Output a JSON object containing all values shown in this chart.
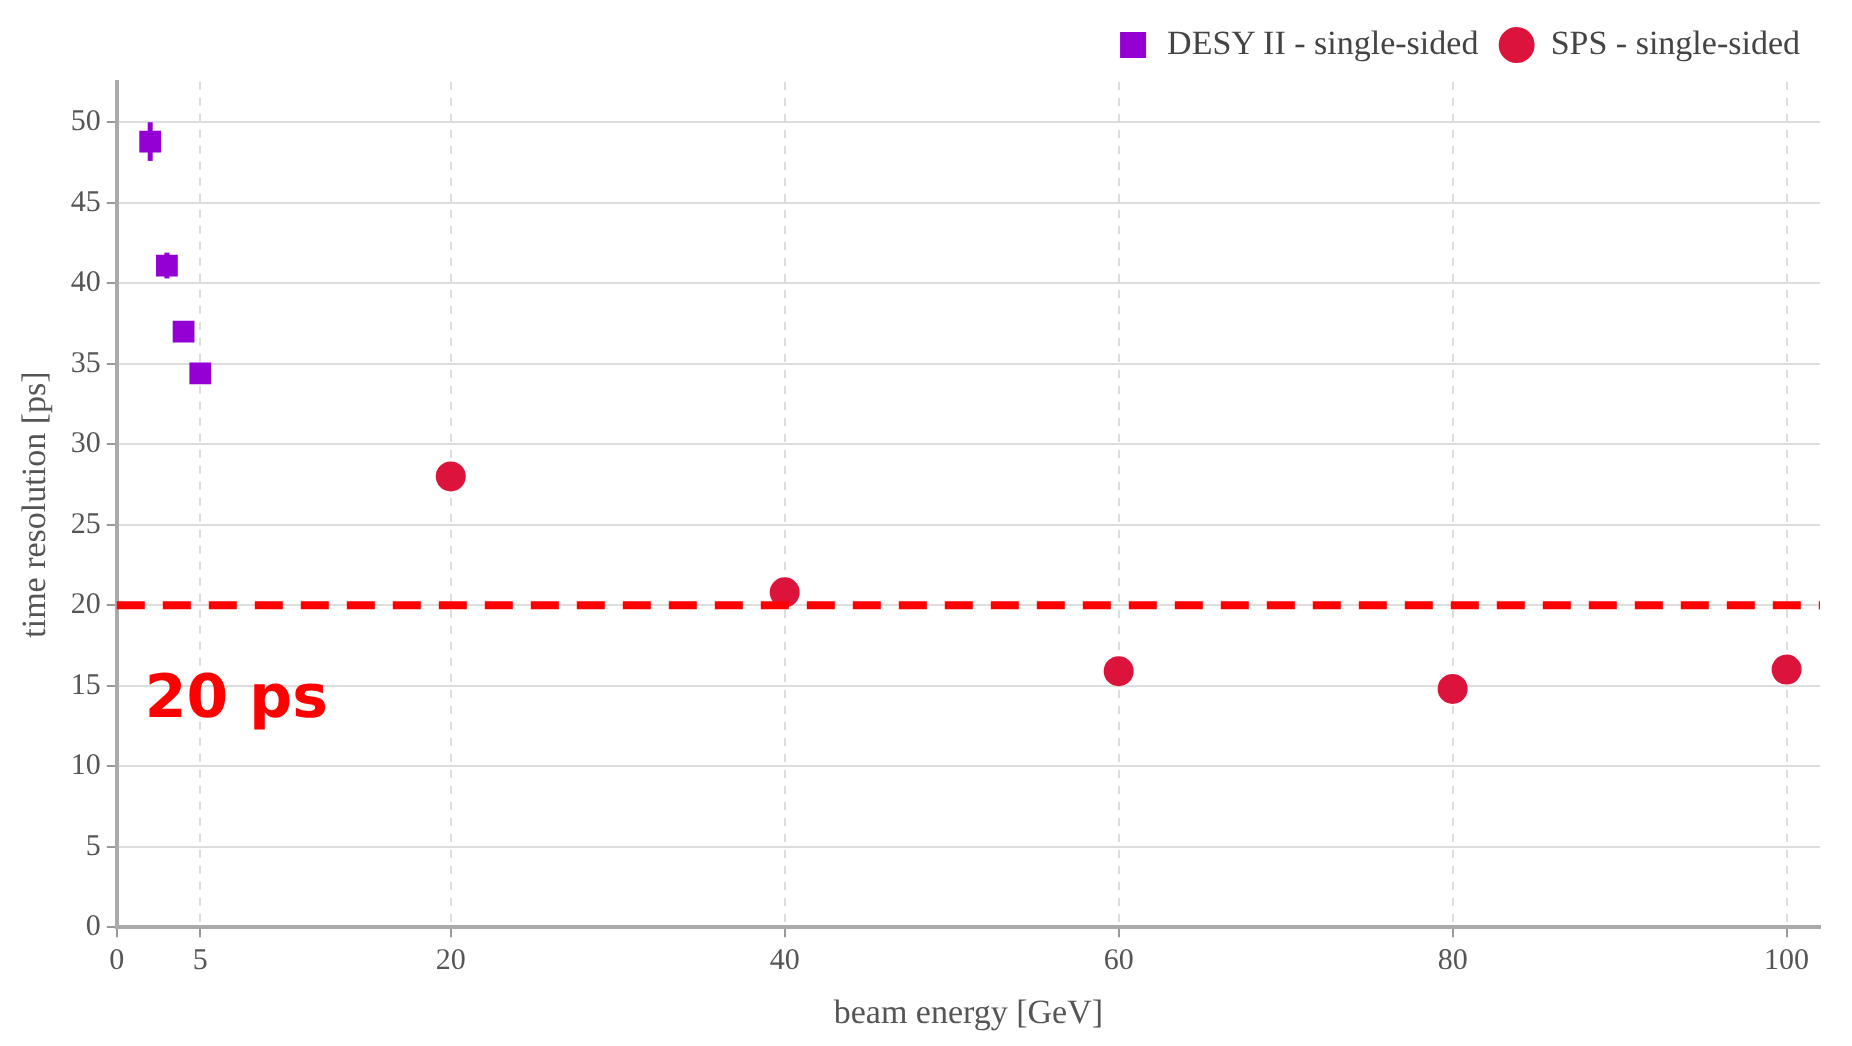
{
  "chart_data": {
    "type": "scatter",
    "xlabel": "beam energy [GeV]",
    "ylabel": "time resolution [ps]",
    "series": [
      {
        "name": "DESY II - single-sided",
        "color": "#9400d3",
        "marker": "square",
        "x": [
          2,
          3,
          4,
          5
        ],
        "values": [
          48.8,
          41.1,
          37.0,
          34.4
        ],
        "errors": [
          1.2,
          0.8,
          null,
          null
        ]
      },
      {
        "name": "SPS - single-sided",
        "color": "#dc143c",
        "marker": "circle",
        "x": [
          20,
          40,
          60,
          80,
          100
        ],
        "values": [
          28.0,
          20.8,
          15.9,
          14.8,
          16.0
        ],
        "errors": [
          0.6,
          null,
          null,
          null,
          null
        ]
      }
    ],
    "xlim": [
      0,
      102
    ],
    "xticks": [
      0,
      5,
      20,
      40,
      60,
      80,
      100
    ],
    "ylim": [
      0,
      52.5
    ],
    "yticks": [
      0,
      5,
      10,
      15,
      20,
      25,
      30,
      35,
      40,
      45,
      50
    ],
    "ref_lines": [
      {
        "axis": "y",
        "value": 20,
        "label": "20 ps",
        "color": "#ff0000",
        "line_style": "dashed"
      }
    ],
    "grid": true,
    "legend": "top right"
  }
}
